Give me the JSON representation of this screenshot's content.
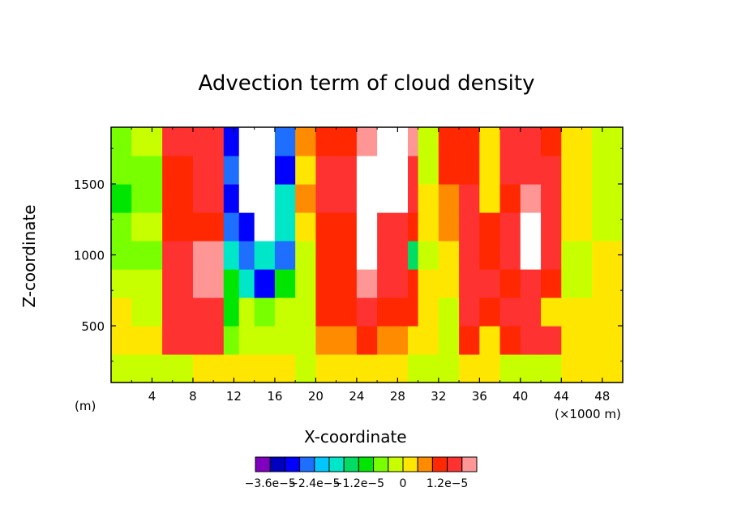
{
  "chart_data": {
    "type": "heatmap",
    "title": "Advection term of cloud density",
    "xlabel": "X-coordinate",
    "ylabel": "Z-coordinate",
    "x_unit_left": "(m)",
    "x_unit_right": "(×1000 m)",
    "xlim": [
      0,
      50
    ],
    "ylim": [
      100,
      1900
    ],
    "x_ticks": [
      4,
      8,
      12,
      16,
      20,
      24,
      28,
      32,
      36,
      40,
      44,
      48
    ],
    "x_tick_labels": [
      "4",
      "8",
      "12",
      "16",
      "20",
      "24",
      "28",
      "32",
      "36",
      "40",
      "44",
      "48"
    ],
    "y_ticks": [
      500,
      1000,
      1500
    ],
    "y_tick_labels": [
      "500",
      "1000",
      "1500"
    ],
    "colorbar": {
      "colors": [
        "#7f00bf",
        "#0000bf",
        "#0000ff",
        "#1e6eff",
        "#00c8ff",
        "#00e6c8",
        "#00dc64",
        "#00e600",
        "#78ff00",
        "#c8ff00",
        "#ffe600",
        "#ff8c00",
        "#ff2800",
        "#ff3232",
        "#ff9696"
      ],
      "tick_labels": [
        "−3.6e−5",
        "−2.4e−5",
        "−1.2e−5",
        "0",
        "1.2e−5"
      ],
      "tick_positions": [
        0.0,
        0.2,
        0.4,
        0.6,
        0.8
      ]
    },
    "x_bands": [
      0,
      2,
      5,
      8,
      11,
      12.5,
      14,
      16,
      18,
      20,
      24,
      26,
      29,
      30,
      32,
      34,
      36,
      38,
      40,
      42,
      44,
      47,
      50
    ],
    "z_bands": [
      100,
      300,
      500,
      700,
      900,
      1100,
      1300,
      1500,
      1700,
      1900
    ],
    "level_grid": [
      [
        9,
        9,
        9,
        10,
        10,
        10,
        10,
        10,
        9,
        10,
        10,
        10,
        9,
        9,
        9,
        10,
        10,
        9,
        9,
        9,
        10,
        10
      ],
      [
        10,
        10,
        13,
        13,
        8,
        9,
        9,
        9,
        9,
        11,
        12,
        11,
        10,
        10,
        9,
        12,
        10,
        12,
        13,
        13,
        10,
        10
      ],
      [
        10,
        9,
        13,
        13,
        7,
        9,
        8,
        9,
        9,
        12,
        13,
        12,
        12,
        10,
        9,
        13,
        12,
        13,
        13,
        10,
        10,
        10
      ],
      [
        9,
        9,
        13,
        14,
        7,
        5,
        2,
        7,
        9,
        12,
        14,
        13,
        12,
        10,
        10,
        13,
        13,
        12,
        13,
        12,
        9,
        10
      ],
      [
        8,
        8,
        13,
        14,
        5,
        3,
        5,
        3,
        9,
        12,
        15,
        13,
        6,
        9,
        10,
        13,
        12,
        13,
        15,
        13,
        9,
        10
      ],
      [
        8,
        9,
        12,
        12,
        3,
        2,
        15,
        5,
        10,
        12,
        15,
        13,
        12,
        10,
        11,
        13,
        12,
        13,
        15,
        13,
        10,
        9
      ],
      [
        7,
        8,
        12,
        13,
        2,
        15,
        15,
        5,
        11,
        13,
        15,
        15,
        13,
        10,
        11,
        13,
        10,
        12,
        14,
        13,
        10,
        9
      ],
      [
        8,
        8,
        12,
        13,
        3,
        15,
        15,
        2,
        10,
        13,
        15,
        15,
        13,
        9,
        12,
        12,
        10,
        13,
        13,
        13,
        10,
        9
      ],
      [
        8,
        9,
        13,
        13,
        2,
        15,
        15,
        3,
        11,
        12,
        14,
        15,
        14,
        9,
        12,
        12,
        10,
        13,
        13,
        12,
        10,
        9
      ]
    ]
  }
}
